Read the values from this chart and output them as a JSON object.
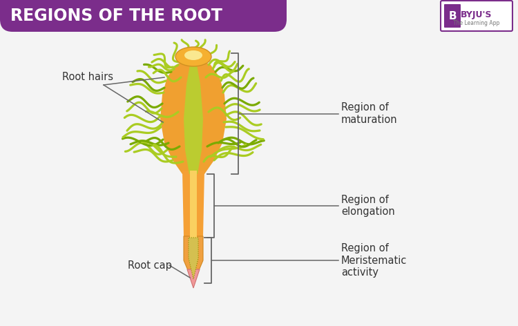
{
  "title": "REGIONS OF THE ROOT",
  "title_bg_color": "#7B2D8B",
  "title_text_color": "#FFFFFF",
  "bg_color": "#F4F4F4",
  "byju_color": "#7B2D8B",
  "labels": {
    "root_hairs": "Root hairs",
    "region_maturation": "Region of\nmaturation",
    "region_elongation": "Region of\nelongation",
    "region_meristematic": "Region of\nMeristematic\nactivity",
    "root_cap": "Root cap"
  },
  "colors": {
    "hair_green": "#AACC22",
    "hair_dark_green": "#7AAA00",
    "hair_outline": "#88AA00",
    "stem_orange": "#F5A030",
    "stem_yellow": "#F8CC50",
    "stem_red": "#F08070",
    "cap_pink": "#F0C0A0",
    "cap_green_dark": "#6A9900",
    "root_tip_pink": "#F09090",
    "bulb_orange": "#F5B830",
    "bulb_light": "#F8E898",
    "bracket_color": "#888888",
    "line_color": "#666666",
    "text_color": "#333333"
  }
}
